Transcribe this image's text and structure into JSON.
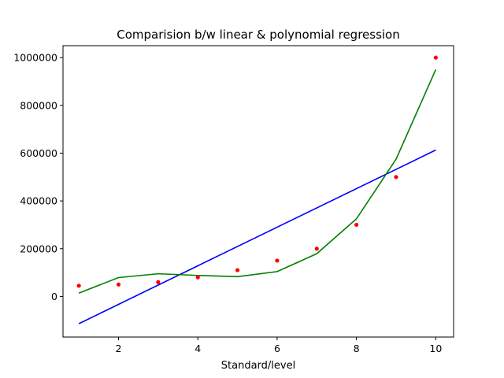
{
  "chart_data": {
    "type": "line",
    "title": "Comparision b/w linear & polynomial regression",
    "xlabel": "Standard/level",
    "ylabel": "",
    "xlim": [
      0.6,
      10.45
    ],
    "ylim": [
      -170000,
      1050000
    ],
    "x_ticks": [
      2,
      4,
      6,
      8,
      10
    ],
    "x_tick_labels": [
      "2",
      "4",
      "6",
      "8",
      "10"
    ],
    "y_ticks": [
      0,
      200000,
      400000,
      600000,
      800000,
      1000000
    ],
    "y_tick_labels": [
      "0",
      "200000",
      "400000",
      "600000",
      "800000",
      "1000000"
    ],
    "grid": false,
    "series": [
      {
        "kind": "scatter",
        "color": "#ff0000",
        "x": [
          1,
          2,
          3,
          4,
          5,
          6,
          7,
          8,
          9,
          10
        ],
        "y": [
          45000,
          50000,
          60000,
          80000,
          110000,
          150000,
          200000,
          300000,
          500000,
          1000000
        ]
      },
      {
        "kind": "line",
        "color": "#0000ff",
        "x": [
          1,
          10
        ],
        "y": [
          -114000,
          613000
        ]
      },
      {
        "kind": "line",
        "color": "#008000",
        "x": [
          1,
          2,
          3,
          4,
          5,
          6,
          7,
          8,
          9,
          10
        ],
        "y": [
          14000,
          79000,
          95000,
          88000,
          83000,
          104000,
          179000,
          325000,
          575000,
          950000
        ]
      }
    ]
  }
}
